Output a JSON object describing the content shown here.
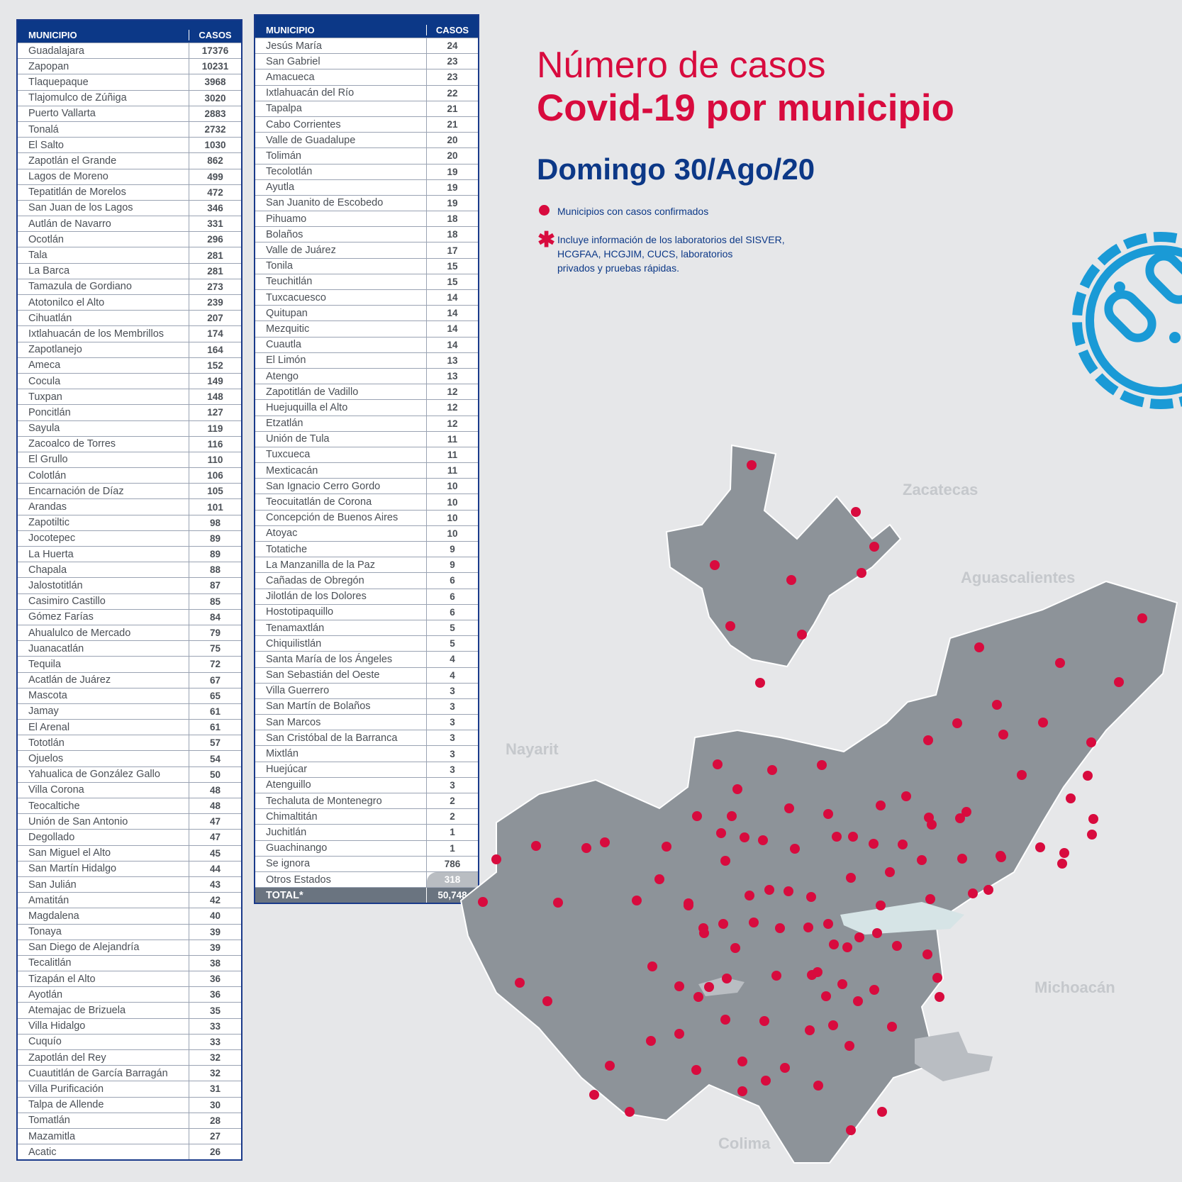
{
  "table_headers": {
    "municipio": "MUNICIPIO",
    "casos": "CASOS"
  },
  "table_left": [
    [
      "Guadalajara",
      "17376"
    ],
    [
      "Zapopan",
      "10231"
    ],
    [
      "Tlaquepaque",
      "3968"
    ],
    [
      "Tlajomulco de Zúñiga",
      "3020"
    ],
    [
      "Puerto Vallarta",
      "2883"
    ],
    [
      "Tonalá",
      "2732"
    ],
    [
      "El Salto",
      "1030"
    ],
    [
      "Zapotlán el Grande",
      "862"
    ],
    [
      "Lagos de Moreno",
      "499"
    ],
    [
      "Tepatitlán de Morelos",
      "472"
    ],
    [
      "San Juan de los Lagos",
      "346"
    ],
    [
      "Autlán de Navarro",
      "331"
    ],
    [
      "Ocotlán",
      "296"
    ],
    [
      "Tala",
      "281"
    ],
    [
      "La Barca",
      "281"
    ],
    [
      "Tamazula de Gordiano",
      "273"
    ],
    [
      "Atotonilco el Alto",
      "239"
    ],
    [
      "Cihuatlán",
      "207"
    ],
    [
      "Ixtlahuacán de los Membrillos",
      "174"
    ],
    [
      "Zapotlanejo",
      "164"
    ],
    [
      "Ameca",
      "152"
    ],
    [
      "Cocula",
      "149"
    ],
    [
      "Tuxpan",
      "148"
    ],
    [
      "Poncitlán",
      "127"
    ],
    [
      "Sayula",
      "119"
    ],
    [
      "Zacoalco de Torres",
      "116"
    ],
    [
      "El Grullo",
      "110"
    ],
    [
      "Colotlán",
      "106"
    ],
    [
      "Encarnación de Díaz",
      "105"
    ],
    [
      "Arandas",
      "101"
    ],
    [
      "Zapotiltic",
      "98"
    ],
    [
      "Jocotepec",
      "89"
    ],
    [
      "La Huerta",
      "89"
    ],
    [
      "Chapala",
      "88"
    ],
    [
      "Jalostotitlán",
      "87"
    ],
    [
      "Casimiro Castillo",
      "85"
    ],
    [
      "Gómez Farías",
      "84"
    ],
    [
      "Ahualulco de Mercado",
      "79"
    ],
    [
      "Juanacatlán",
      "75"
    ],
    [
      "Tequila",
      "72"
    ],
    [
      "Acatlán de Juárez",
      "67"
    ],
    [
      "Mascota",
      "65"
    ],
    [
      "Jamay",
      "61"
    ],
    [
      "El Arenal",
      "61"
    ],
    [
      "Tototlán",
      "57"
    ],
    [
      "Ojuelos",
      "54"
    ],
    [
      "Yahualica de González Gallo",
      "50"
    ],
    [
      "Villa Corona",
      "48"
    ],
    [
      "Teocaltiche",
      "48"
    ],
    [
      "Unión de San Antonio",
      "47"
    ],
    [
      "Degollado",
      "47"
    ],
    [
      "San Miguel el Alto",
      "45"
    ],
    [
      "San Martín Hidalgo",
      "44"
    ],
    [
      "San Julián",
      "43"
    ],
    [
      "Amatitán",
      "42"
    ],
    [
      "Magdalena",
      "40"
    ],
    [
      "Tonaya",
      "39"
    ],
    [
      "San Diego de Alejandría",
      "39"
    ],
    [
      "Tecalitlán",
      "38"
    ],
    [
      "Tizapán el Alto",
      "36"
    ],
    [
      "Ayotlán",
      "36"
    ],
    [
      "Atemajac de Brizuela",
      "35"
    ],
    [
      "Villa Hidalgo",
      "33"
    ],
    [
      "Cuquío",
      "33"
    ],
    [
      "Zapotlán del Rey",
      "32"
    ],
    [
      "Cuautitlán de García Barragán",
      "32"
    ],
    [
      "Villa Purificación",
      "31"
    ],
    [
      "Talpa de Allende",
      "30"
    ],
    [
      "Tomatlán",
      "28"
    ],
    [
      "Mazamitla",
      "27"
    ],
    [
      "Acatic",
      "26"
    ]
  ],
  "table_right": [
    [
      "Jesús María",
      "24"
    ],
    [
      "San Gabriel",
      "23"
    ],
    [
      "Amacueca",
      "23"
    ],
    [
      "Ixtlahuacán del Río",
      "22"
    ],
    [
      "Tapalpa",
      "21"
    ],
    [
      "Cabo Corrientes",
      "21"
    ],
    [
      "Valle de Guadalupe",
      "20"
    ],
    [
      "Tolimán",
      "20"
    ],
    [
      "Tecolotlán",
      "19"
    ],
    [
      "Ayutla",
      "19"
    ],
    [
      "San Juanito de Escobedo",
      "19"
    ],
    [
      "Pihuamo",
      "18"
    ],
    [
      "Bolaños",
      "18"
    ],
    [
      "Valle de Juárez",
      "17"
    ],
    [
      "Tonila",
      "15"
    ],
    [
      "Teuchitlán",
      "15"
    ],
    [
      "Tuxcacuesco",
      "14"
    ],
    [
      "Quitupan",
      "14"
    ],
    [
      "Mezquitic",
      "14"
    ],
    [
      "Cuautla",
      "14"
    ],
    [
      "El Limón",
      "13"
    ],
    [
      "Atengo",
      "13"
    ],
    [
      "Zapotitlán de Vadillo",
      "12"
    ],
    [
      "Huejuquilla el Alto",
      "12"
    ],
    [
      "Etzatlán",
      "12"
    ],
    [
      "Unión de Tula",
      "11"
    ],
    [
      "Tuxcueca",
      "11"
    ],
    [
      "Mexticacán",
      "11"
    ],
    [
      "San Ignacio Cerro Gordo",
      "10"
    ],
    [
      "Teocuitatlán de Corona",
      "10"
    ],
    [
      "Concepción de Buenos Aires",
      "10"
    ],
    [
      "Atoyac",
      "10"
    ],
    [
      "Totatiche",
      "9"
    ],
    [
      "La Manzanilla de la Paz",
      "9"
    ],
    [
      "Cañadas de Obregón",
      "6"
    ],
    [
      "Jilotlán de los Dolores",
      "6"
    ],
    [
      "Hostotipaquillo",
      "6"
    ],
    [
      "Tenamaxtlán",
      "5"
    ],
    [
      "Chiquilistlán",
      "5"
    ],
    [
      "Santa María de los Ángeles",
      "4"
    ],
    [
      "San Sebastián del Oeste",
      "4"
    ],
    [
      "Villa Guerrero",
      "3"
    ],
    [
      "San Martín de Bolaños",
      "3"
    ],
    [
      "San Marcos",
      "3"
    ],
    [
      "San Cristóbal de la Barranca",
      "3"
    ],
    [
      "Mixtlán",
      "3"
    ],
    [
      "Huejúcar",
      "3"
    ],
    [
      "Atenguillo",
      "3"
    ],
    [
      "Techaluta de Montenegro",
      "2"
    ],
    [
      "Chimaltitán",
      "2"
    ],
    [
      "Juchitlán",
      "1"
    ],
    [
      "Guachinango",
      "1"
    ],
    [
      "Se ignora",
      "786"
    ]
  ],
  "otros": {
    "label": "Otros Estados",
    "value": "318"
  },
  "total": {
    "label": "TOTAL*",
    "value": "50,748"
  },
  "title_line1": "Número de casos",
  "title_line2": "Covid-19 por municipio",
  "date_label": "Domingo 30/Ago/20",
  "legend_text": "Municipios con casos confirmados",
  "note_text": [
    "Incluye información de los laboratorios del SISVER,",
    "HCGFAA, HCGJIM, CUCS, laboratorios",
    "privados y pruebas rápidas."
  ],
  "state_labels": {
    "zacatecas": "Zacatecas",
    "aguascalientes": "Aguascalientes",
    "nayarit": "Nayarit",
    "michoacan": "Michoacán",
    "colima": "Colima"
  },
  "colors": {
    "accent_red": "#d80b3e",
    "navy": "#0c3887",
    "map_gray": "#8d9399",
    "icon_blue": "#1a9ad6"
  }
}
